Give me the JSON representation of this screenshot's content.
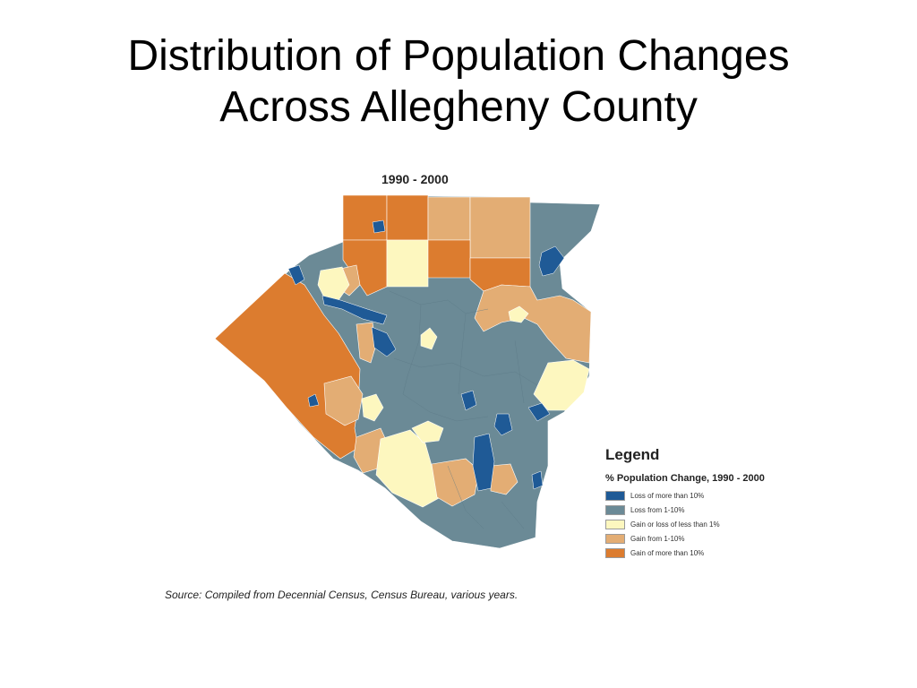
{
  "slide": {
    "title_lines": [
      "Distribution of Population Changes",
      "Across Allegheny County"
    ]
  },
  "map": {
    "period_label": "1990 - 2000",
    "legend": {
      "title": "Legend",
      "subtitle": "% Population Change, 1990 - 2000",
      "items": [
        {
          "label": "Loss of more than 10%",
          "color": "#1f5a96"
        },
        {
          "label": "Loss from 1-10%",
          "color": "#6b8a96"
        },
        {
          "label": "Gain or loss of less than 1%",
          "color": "#fdf7bf"
        },
        {
          "label": "Gain from 1-10%",
          "color": "#e3ad74"
        },
        {
          "label": "Gain of more than 10%",
          "color": "#dc7c2f"
        }
      ]
    },
    "source": "Source: Compiled from Decennial Census, Census Bureau, various years."
  }
}
